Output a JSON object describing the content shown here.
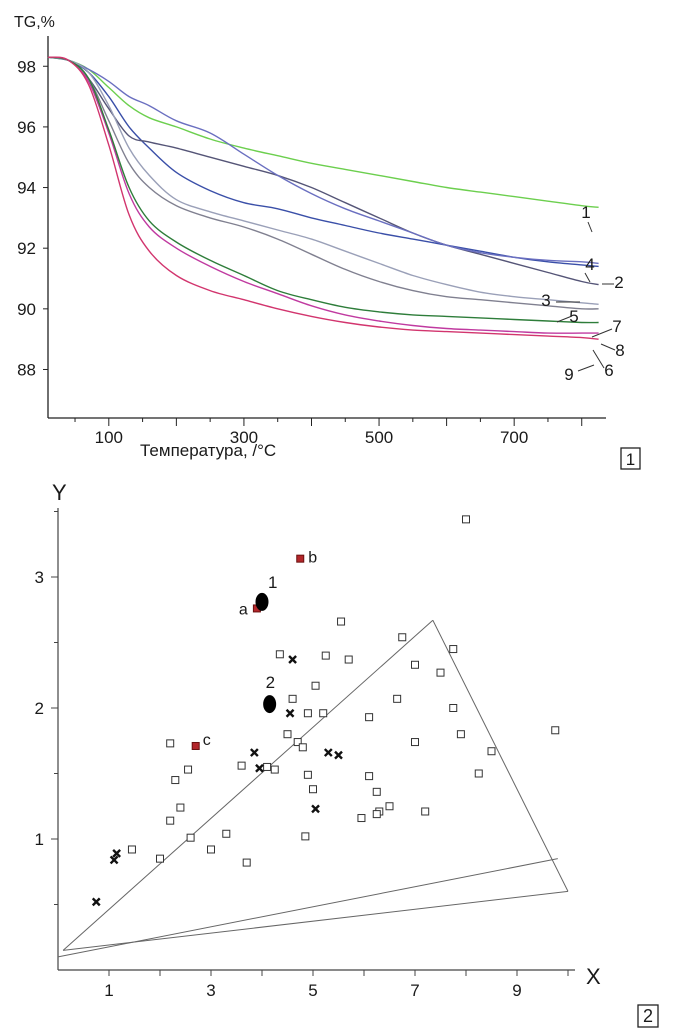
{
  "chart_data": [
    {
      "type": "line",
      "panel_label": "1",
      "ylabel": "TG,%",
      "xlabel": "Температура, /°C",
      "xlim": [
        10,
        830
      ],
      "ylim": [
        86.4,
        98.8
      ],
      "xticks": [
        100,
        300,
        500,
        700
      ],
      "yticks": [
        88,
        90,
        92,
        94,
        96,
        98
      ],
      "x": [
        10,
        40,
        70,
        100,
        130,
        160,
        200,
        250,
        300,
        350,
        400,
        450,
        500,
        550,
        600,
        650,
        700,
        750,
        800,
        825
      ],
      "series": [
        {
          "name": "1",
          "color": "#6ccf4e",
          "values": [
            98.3,
            98.2,
            97.9,
            97.3,
            96.7,
            96.3,
            96.0,
            95.6,
            95.3,
            95.05,
            94.8,
            94.6,
            94.4,
            94.2,
            94.0,
            93.85,
            93.7,
            93.55,
            93.4,
            93.35
          ]
        },
        {
          "name": "2",
          "color": "#3a4fa8",
          "values": [
            98.3,
            98.2,
            97.8,
            97.0,
            96.0,
            95.3,
            94.5,
            93.9,
            93.5,
            93.3,
            93.0,
            92.75,
            92.5,
            92.3,
            92.1,
            91.9,
            91.7,
            91.55,
            91.45,
            91.4
          ]
        },
        {
          "name": "3",
          "color": "#555577",
          "values": [
            98.3,
            98.2,
            97.6,
            96.6,
            95.7,
            95.5,
            95.3,
            95.0,
            94.7,
            94.4,
            94.0,
            93.5,
            93.0,
            92.5,
            92.1,
            91.8,
            91.5,
            91.2,
            90.9,
            90.8
          ]
        },
        {
          "name": "4",
          "color": "#6a6fc0",
          "values": [
            98.3,
            98.2,
            97.9,
            97.5,
            97.0,
            96.7,
            96.2,
            95.8,
            95.1,
            94.4,
            93.8,
            93.3,
            92.9,
            92.5,
            92.1,
            91.85,
            91.7,
            91.6,
            91.55,
            91.5
          ]
        },
        {
          "name": "5",
          "color": "#9aa0b8",
          "values": [
            98.3,
            98.2,
            97.8,
            96.7,
            95.3,
            94.4,
            93.6,
            93.2,
            92.9,
            92.6,
            92.3,
            91.9,
            91.5,
            91.1,
            90.8,
            90.55,
            90.4,
            90.3,
            90.2,
            90.15
          ]
        },
        {
          "name": "6",
          "color": "#c03aa0",
          "values": [
            98.3,
            98.2,
            97.5,
            95.8,
            93.8,
            92.7,
            92.0,
            91.4,
            90.9,
            90.5,
            90.1,
            89.8,
            89.6,
            89.45,
            89.35,
            89.3,
            89.25,
            89.2,
            89.2,
            89.2
          ]
        },
        {
          "name": "7",
          "color": "#808090",
          "values": [
            98.3,
            98.2,
            97.6,
            96.2,
            94.8,
            94.0,
            93.4,
            93.0,
            92.7,
            92.3,
            91.8,
            91.3,
            90.9,
            90.6,
            90.4,
            90.3,
            90.2,
            90.1,
            90.0,
            90.0
          ]
        },
        {
          "name": "8",
          "color": "#2e7d3a",
          "values": [
            98.3,
            98.2,
            97.6,
            95.9,
            94.0,
            92.9,
            92.2,
            91.6,
            91.1,
            90.6,
            90.3,
            90.05,
            89.9,
            89.8,
            89.75,
            89.7,
            89.65,
            89.6,
            89.55,
            89.55
          ]
        },
        {
          "name": "9",
          "color": "#d2356e",
          "values": [
            98.3,
            98.2,
            97.4,
            95.4,
            93.1,
            91.9,
            91.1,
            90.6,
            90.3,
            90.0,
            89.75,
            89.55,
            89.4,
            89.3,
            89.25,
            89.2,
            89.15,
            89.1,
            89.05,
            89.0
          ]
        }
      ]
    },
    {
      "type": "scatter",
      "panel_label": "2",
      "xlabel": "X",
      "ylabel": "Y",
      "xlim": [
        0,
        10
      ],
      "ylim": [
        0,
        3.6
      ],
      "xticks": [
        1,
        3,
        5,
        7,
        9
      ],
      "yticks": [
        1,
        2,
        3
      ],
      "triangle": [
        [
          0.1,
          0.15
        ],
        [
          7.35,
          2.67
        ],
        [
          10.0,
          0.6
        ]
      ],
      "lower_line": [
        [
          0.0,
          0.1
        ],
        [
          9.8,
          0.85
        ]
      ],
      "open_squares": [
        [
          8.0,
          3.44
        ],
        [
          5.55,
          2.66
        ],
        [
          6.75,
          2.54
        ],
        [
          4.35,
          2.41
        ],
        [
          5.25,
          2.4
        ],
        [
          5.7,
          2.37
        ],
        [
          7.75,
          2.45
        ],
        [
          7.0,
          2.33
        ],
        [
          7.5,
          2.27
        ],
        [
          5.05,
          2.17
        ],
        [
          4.6,
          2.07
        ],
        [
          6.65,
          2.07
        ],
        [
          7.75,
          2.0
        ],
        [
          4.9,
          1.96
        ],
        [
          5.2,
          1.96
        ],
        [
          6.1,
          1.93
        ],
        [
          4.5,
          1.8
        ],
        [
          4.7,
          1.74
        ],
        [
          4.8,
          1.7
        ],
        [
          7.0,
          1.74
        ],
        [
          7.9,
          1.8
        ],
        [
          8.5,
          1.67
        ],
        [
          9.75,
          1.83
        ],
        [
          2.2,
          1.73
        ],
        [
          2.55,
          1.53
        ],
        [
          2.3,
          1.45
        ],
        [
          3.6,
          1.56
        ],
        [
          4.1,
          1.55
        ],
        [
          4.25,
          1.53
        ],
        [
          4.9,
          1.49
        ],
        [
          6.1,
          1.48
        ],
        [
          6.25,
          1.36
        ],
        [
          6.5,
          1.25
        ],
        [
          6.3,
          1.21
        ],
        [
          6.25,
          1.19
        ],
        [
          5.95,
          1.16
        ],
        [
          7.2,
          1.21
        ],
        [
          8.25,
          1.5
        ],
        [
          2.4,
          1.24
        ],
        [
          2.2,
          1.14
        ],
        [
          3.3,
          1.04
        ],
        [
          2.6,
          1.01
        ],
        [
          4.85,
          1.02
        ],
        [
          5.0,
          1.38
        ],
        [
          1.45,
          0.92
        ],
        [
          2.0,
          0.85
        ],
        [
          3.0,
          0.92
        ],
        [
          3.7,
          0.82
        ]
      ],
      "crosses": [
        [
          3.85,
          1.66
        ],
        [
          3.95,
          1.54
        ],
        [
          4.6,
          2.37
        ],
        [
          4.55,
          1.96
        ],
        [
          5.3,
          1.66
        ],
        [
          5.5,
          1.64
        ],
        [
          5.05,
          1.23
        ],
        [
          1.15,
          0.89
        ],
        [
          1.1,
          0.84
        ],
        [
          0.75,
          0.52
        ]
      ],
      "red_points": [
        {
          "label": "a",
          "x": 3.9,
          "y": 2.76
        },
        {
          "label": "b",
          "x": 4.75,
          "y": 3.14
        },
        {
          "label": "c",
          "x": 2.7,
          "y": 1.71
        }
      ],
      "centroids": [
        {
          "label": "1",
          "x": 4.0,
          "y": 2.81
        },
        {
          "label": "2",
          "x": 4.15,
          "y": 2.03
        }
      ]
    }
  ]
}
